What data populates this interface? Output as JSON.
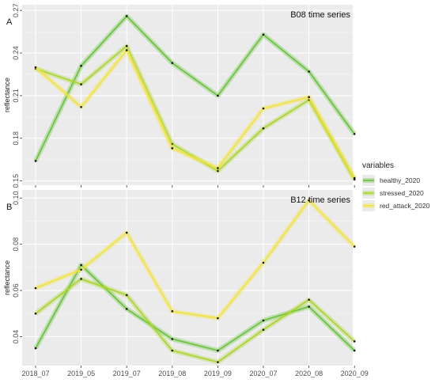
{
  "chart_data": [
    {
      "type": "line",
      "panel_label": "A",
      "title": "B08 time series",
      "xlabel": "",
      "ylabel": "reflectance",
      "categories": [
        "2018_07",
        "2019_05",
        "2019_07",
        "2019_08",
        "2019_09",
        "2020_07",
        "2020_08",
        "2020_09"
      ],
      "yticks": [
        0.15,
        0.18,
        0.21,
        0.24,
        0.27
      ],
      "ylim": [
        0.147,
        0.274
      ],
      "series": [
        {
          "name": "healthy_2020",
          "values": [
            0.164,
            0.231,
            0.266,
            0.233,
            0.21,
            0.253,
            0.227,
            0.183
          ]
        },
        {
          "name": "stressed_2020",
          "values": [
            0.229,
            0.218,
            0.245,
            0.176,
            0.157,
            0.187,
            0.207,
            0.151
          ]
        },
        {
          "name": "red_attack_2020",
          "values": [
            0.23,
            0.202,
            0.242,
            0.173,
            0.159,
            0.201,
            0.209,
            0.152
          ]
        }
      ]
    },
    {
      "type": "line",
      "panel_label": "B",
      "title": "B12 time series",
      "xlabel": "",
      "ylabel": "reflectance",
      "categories": [
        "2018_07",
        "2019_05",
        "2019_07",
        "2019_08",
        "2019_09",
        "2020_07",
        "2020_08",
        "2020_09"
      ],
      "yticks": [
        0.04,
        0.06,
        0.08,
        0.1
      ],
      "ylim": [
        0.0275,
        0.1035
      ],
      "series": [
        {
          "name": "healthy_2020",
          "values": [
            0.035,
            0.071,
            0.052,
            0.039,
            0.034,
            0.047,
            0.053,
            0.034
          ]
        },
        {
          "name": "stressed_2020",
          "values": [
            0.05,
            0.065,
            0.058,
            0.034,
            0.029,
            0.043,
            0.056,
            0.038
          ]
        },
        {
          "name": "red_attack_2020",
          "values": [
            0.061,
            0.069,
            0.085,
            0.051,
            0.048,
            0.072,
            0.099,
            0.079
          ]
        }
      ]
    }
  ],
  "legend": {
    "title": "variables",
    "placement": "right",
    "items": [
      "healthy_2020",
      "stressed_2020",
      "red_attack_2020"
    ]
  },
  "colors": {
    "healthy_2020": "#66c23a",
    "stressed_2020": "#a8d42a",
    "red_attack_2020": "#f2e23a",
    "panel_background": "#ebebeb",
    "grid": "#ffffff",
    "ribbon_alpha": 0.35
  },
  "grid": true
}
